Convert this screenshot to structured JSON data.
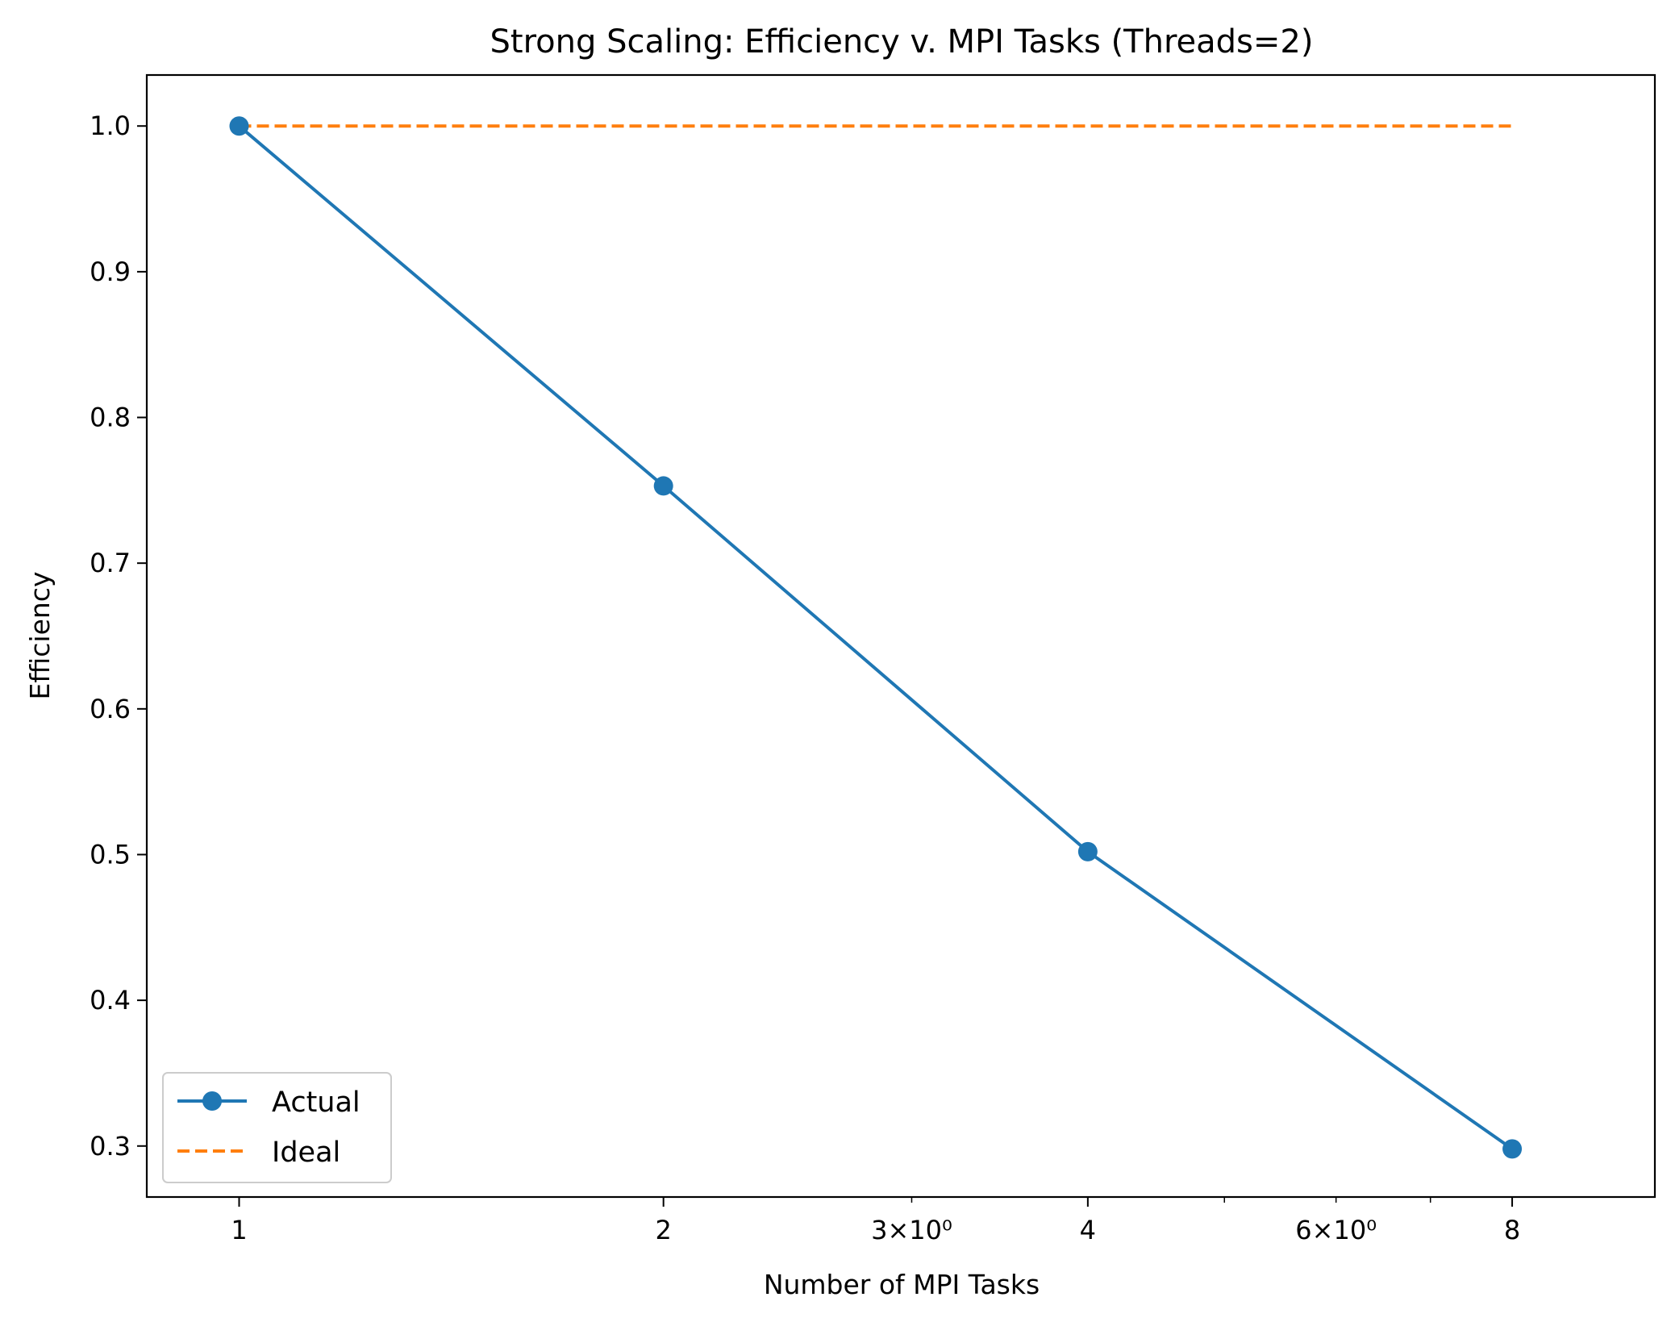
{
  "chart_data": {
    "type": "line",
    "title": "Strong Scaling: Efficiency v. MPI Tasks (Threads=2)",
    "xlabel": "Number of MPI Tasks",
    "ylabel": "Efficiency",
    "x_scale": "log",
    "xlim": [
      0.86,
      10.1
    ],
    "ylim": [
      0.265,
      1.035
    ],
    "x": [
      1,
      2,
      4,
      8
    ],
    "x_ticks": [
      {
        "value": 1,
        "label": "1",
        "major": true
      },
      {
        "value": 2,
        "label": "2",
        "major": true
      },
      {
        "value": 3,
        "label": "3×10⁰",
        "major": false
      },
      {
        "value": 4,
        "label": "4",
        "major": true
      },
      {
        "value": 5,
        "label": "",
        "major": false
      },
      {
        "value": 6,
        "label": "6×10⁰",
        "major": false
      },
      {
        "value": 7,
        "label": "",
        "major": false
      },
      {
        "value": 8,
        "label": "8",
        "major": true
      }
    ],
    "y_ticks": [
      {
        "value": 0.3,
        "label": "0.3"
      },
      {
        "value": 0.4,
        "label": "0.4"
      },
      {
        "value": 0.5,
        "label": "0.5"
      },
      {
        "value": 0.6,
        "label": "0.6"
      },
      {
        "value": 0.7,
        "label": "0.7"
      },
      {
        "value": 0.8,
        "label": "0.8"
      },
      {
        "value": 0.9,
        "label": "0.9"
      },
      {
        "value": 1.0,
        "label": "1.0"
      }
    ],
    "series": [
      {
        "name": "Actual",
        "values": [
          1.0,
          0.753,
          0.502,
          0.298
        ],
        "color": "#1f77b4",
        "style": "solid",
        "marker": "circle"
      },
      {
        "name": "Ideal",
        "values": [
          1.0,
          1.0,
          1.0,
          1.0
        ],
        "color": "#ff7f0e",
        "style": "dashed",
        "marker": "none"
      }
    ],
    "grid": false,
    "legend_position": "lower-left"
  }
}
